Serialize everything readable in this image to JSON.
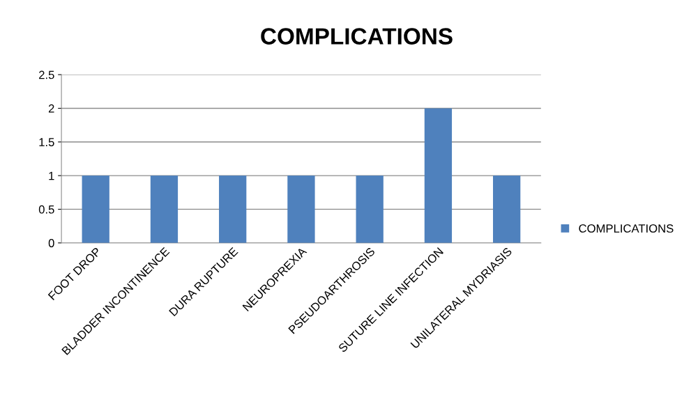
{
  "chart_data": {
    "type": "bar",
    "title": "COMPLICATIONS",
    "categories": [
      "FOOT DROP",
      "BLADDER INCONTINENCE",
      "DURA RUPTURE",
      "NEUROPREXIA",
      "PSEUDOARTHROSIS",
      "SUTURE LINE INFECTION",
      "UNILATERAL MYDRIASIS"
    ],
    "series": [
      {
        "name": "COMPLICATIONS",
        "color": "#4f81bd",
        "values": [
          1,
          1,
          1,
          1,
          1,
          2,
          1
        ]
      }
    ],
    "ylim": [
      0,
      2.5
    ],
    "yticks": [
      0,
      0.5,
      1,
      1.5,
      2,
      2.5
    ],
    "grid": "y",
    "legend": "right"
  }
}
